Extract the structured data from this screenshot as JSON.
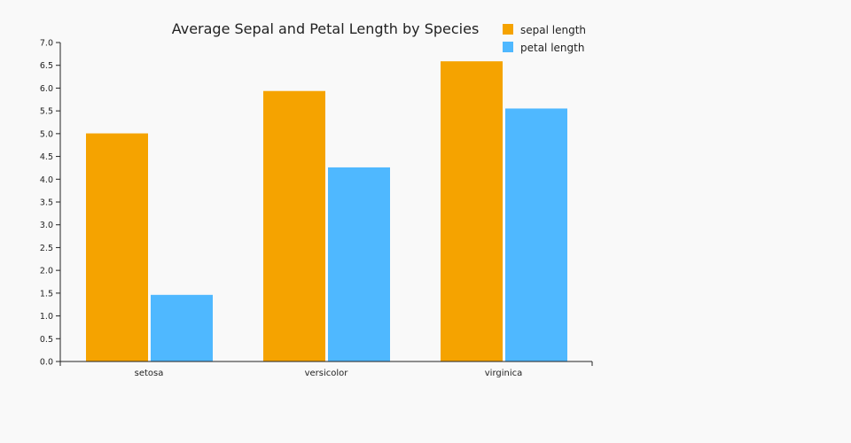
{
  "chart_data": {
    "type": "bar",
    "title": "Average Sepal and Petal Length by Species",
    "categories": [
      "setosa",
      "versicolor",
      "virginica"
    ],
    "series": [
      {
        "name": "sepal length",
        "color": "#f5a300",
        "values": [
          5.006,
          5.936,
          6.588
        ]
      },
      {
        "name": "petal length",
        "color": "#4fb8ff",
        "values": [
          1.462,
          4.26,
          5.552
        ]
      }
    ],
    "xlabel": "",
    "ylabel": "",
    "ylim": [
      0,
      7
    ],
    "yticks": [
      "0.0",
      "0.5",
      "1.0",
      "1.5",
      "2.0",
      "2.5",
      "3.0",
      "3.5",
      "4.0",
      "4.5",
      "5.0",
      "5.5",
      "6.0",
      "6.5",
      "7.0"
    ],
    "grid": false,
    "legend_position": "top-right"
  }
}
